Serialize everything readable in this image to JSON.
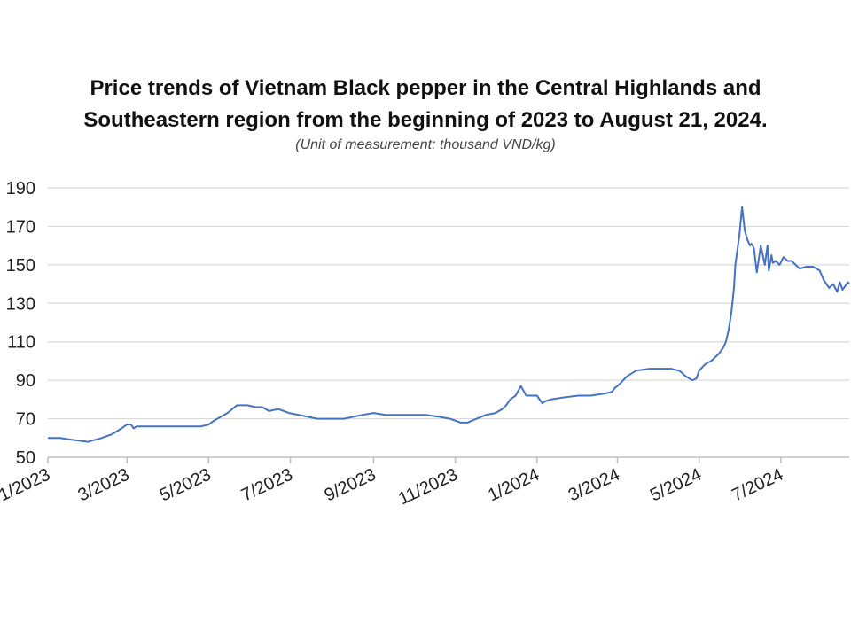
{
  "chart_data": {
    "type": "line",
    "title": "Price trends of Vietnam Black pepper in the Central Highlands and Southeastern region from the beginning of 2023 to August 21, 2024.",
    "title_lines": [
      "Price trends of Vietnam Black pepper in the Central Highlands and",
      "Southeastern region from the beginning of 2023 to August 21, 2024."
    ],
    "subtitle": "(Unit of measurement: thousand VND/kg)",
    "xlabel": "",
    "ylabel": "",
    "ylim": [
      50,
      190
    ],
    "yticks": [
      50,
      70,
      90,
      110,
      130,
      150,
      170,
      190
    ],
    "xlim": [
      "2023-01-01",
      "2024-08-21"
    ],
    "xtick_labels": [
      "1/2023",
      "3/2023",
      "5/2023",
      "7/2023",
      "9/2023",
      "11/2023",
      "1/2024",
      "3/2024",
      "5/2024",
      "7/2024"
    ],
    "xtick_dates": [
      "2023-01-01",
      "2023-03-01",
      "2023-05-01",
      "2023-07-01",
      "2023-09-01",
      "2023-11-01",
      "2024-01-01",
      "2024-03-01",
      "2024-05-01",
      "2024-07-01"
    ],
    "grid": true,
    "line_color": "#4472c4",
    "series": [
      {
        "x": [
          "2023-01-01",
          "2023-01-10",
          "2023-01-20",
          "2023-01-31",
          "2023-02-10",
          "2023-02-18",
          "2023-02-25",
          "2023-03-01",
          "2023-03-04",
          "2023-03-06",
          "2023-03-08",
          "2023-03-15",
          "2023-03-25",
          "2023-04-05",
          "2023-04-15",
          "2023-04-25",
          "2023-05-01",
          "2023-05-05",
          "2023-05-10",
          "2023-05-15",
          "2023-05-22",
          "2023-05-30",
          "2023-06-05",
          "2023-06-10",
          "2023-06-15",
          "2023-06-22",
          "2023-06-30",
          "2023-07-07",
          "2023-07-14",
          "2023-07-21",
          "2023-07-28",
          "2023-08-04",
          "2023-08-10",
          "2023-08-17",
          "2023-08-24",
          "2023-09-01",
          "2023-09-10",
          "2023-09-20",
          "2023-10-01",
          "2023-10-10",
          "2023-10-20",
          "2023-10-28",
          "2023-11-01",
          "2023-11-05",
          "2023-11-10",
          "2023-11-17",
          "2023-11-24",
          "2023-12-01",
          "2023-12-06",
          "2023-12-09",
          "2023-12-12",
          "2023-12-16",
          "2023-12-20",
          "2023-12-24",
          "2024-01-01",
          "2024-01-03",
          "2024-01-05",
          "2024-01-07",
          "2024-01-11",
          "2024-01-20",
          "2024-02-01",
          "2024-02-10",
          "2024-02-20",
          "2024-02-26",
          "2024-02-28",
          "2024-03-01",
          "2024-03-04",
          "2024-03-08",
          "2024-03-15",
          "2024-03-25",
          "2024-04-01",
          "2024-04-05",
          "2024-04-10",
          "2024-04-16",
          "2024-04-18",
          "2024-04-21",
          "2024-04-26",
          "2024-04-29",
          "2024-05-01",
          "2024-05-05",
          "2024-05-07",
          "2024-05-10",
          "2024-05-13",
          "2024-05-16",
          "2024-05-19",
          "2024-05-21",
          "2024-05-23",
          "2024-05-25",
          "2024-05-27",
          "2024-05-28",
          "2024-05-30",
          "2024-05-31",
          "2024-06-02",
          "2024-06-04",
          "2024-06-06",
          "2024-06-08",
          "2024-06-09",
          "2024-06-10",
          "2024-06-11",
          "2024-06-13",
          "2024-06-16",
          "2024-06-19",
          "2024-06-21",
          "2024-06-22",
          "2024-06-24",
          "2024-06-25",
          "2024-06-27",
          "2024-06-30",
          "2024-07-03",
          "2024-07-06",
          "2024-07-09",
          "2024-07-12",
          "2024-07-15",
          "2024-07-20",
          "2024-07-25",
          "2024-07-30",
          "2024-08-02",
          "2024-08-06",
          "2024-08-09",
          "2024-08-12",
          "2024-08-14",
          "2024-08-16",
          "2024-08-18",
          "2024-08-20",
          "2024-08-21"
        ],
        "values": [
          60,
          60,
          59,
          58,
          60,
          62,
          65,
          67,
          67,
          65,
          66,
          66,
          66,
          66,
          66,
          66,
          67,
          69,
          71,
          73,
          77,
          77,
          76,
          76,
          74,
          75,
          73,
          72,
          71,
          70,
          70,
          70,
          70,
          71,
          72,
          73,
          72,
          72,
          72,
          72,
          71,
          70,
          69,
          68,
          68,
          70,
          72,
          73,
          75,
          77,
          80,
          82,
          87,
          82,
          82,
          80,
          78,
          79,
          80,
          81,
          82,
          82,
          83,
          84,
          86,
          87,
          89,
          92,
          95,
          96,
          96,
          96,
          96,
          95,
          94,
          92,
          90,
          91,
          95,
          98,
          99,
          100,
          102,
          104,
          107,
          110,
          116,
          125,
          138,
          150,
          160,
          165,
          180,
          168,
          163,
          160,
          161,
          160,
          158,
          146,
          160,
          150,
          160,
          147,
          155,
          151,
          152,
          150,
          154,
          152,
          152,
          150,
          148,
          149,
          149,
          147,
          142,
          138,
          140,
          136,
          141,
          137,
          139,
          141,
          140
        ]
      }
    ]
  }
}
